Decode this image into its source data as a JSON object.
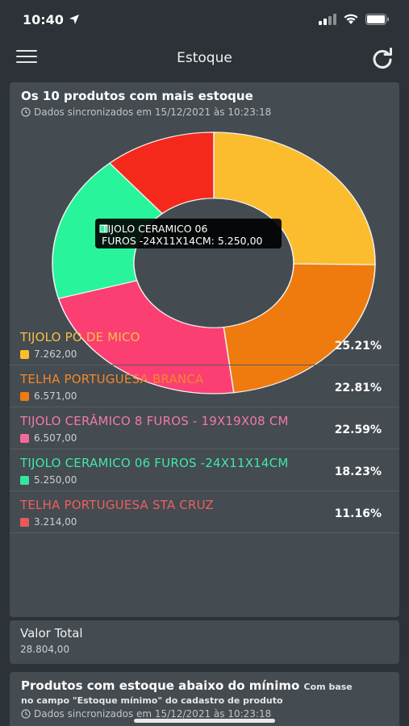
{
  "status": {
    "time": "10:40"
  },
  "header": {
    "title": "Estoque"
  },
  "stock_card": {
    "title": "Os 10 produtos com mais estoque",
    "sync": "Dados sincronizados em 15/12/2021 às 10:23:18"
  },
  "tooltip": {
    "line1": "TIJOLO CERAMICO 06",
    "line2": "FUROS -24X11X14CM: 5.250,00"
  },
  "chart_data": {
    "type": "pie",
    "title": "Os 10 produtos com mais estoque",
    "categories": [
      "TIJOLO PO DE MICO",
      "TELHA PORTUGUESA BRANCA",
      "TIJOLO CERÂMICO 8 FUROS - 19X19X08 CM",
      "TIJOLO CERAMICO 06 FUROS -24X11X14CM",
      "TELHA PORTUGUESA STA CRUZ"
    ],
    "values": [
      7262,
      6571,
      6507,
      5250,
      3214
    ],
    "colors": [
      "#fbbd2e",
      "#ef7b0f",
      "#fb3f72",
      "#28f49b",
      "#f5281c"
    ],
    "donut": true
  },
  "legend": [
    {
      "name": "TIJOLO PO DE MICO",
      "value": "7.262,00",
      "pct": "25.21%",
      "color": "#fbbd2e",
      "text_color": "#f5c048"
    },
    {
      "name": "TELHA PORTUGUESA BRANCA",
      "value": "6.571,00",
      "pct": "22.81%",
      "color": "#ef7b0f",
      "text_color": "#f3882a"
    },
    {
      "name": "TIJOLO CERÂMICO 8 FUROS - 19X19X08 CM",
      "value": "6.507,00",
      "pct": "22.59%",
      "color": "#f06b9b",
      "text_color": "#f07aa6"
    },
    {
      "name": "TIJOLO CERAMICO 06 FUROS -24X11X14CM",
      "value": "5.250,00",
      "pct": "18.23%",
      "color": "#33e6a0",
      "text_color": "#3fe8a8"
    },
    {
      "name": "TELHA PORTUGUESA STA CRUZ",
      "value": "3.214,00",
      "pct": "11.16%",
      "color": "#e85a5a",
      "text_color": "#ee5f5f"
    }
  ],
  "total": {
    "label": "Valor Total",
    "value": "28.804,00"
  },
  "low_stock_card": {
    "title": "Produtos com estoque abaixo do mínimo",
    "note_a": "Com base",
    "note_b": "no campo \"Estoque mínimo\" do cadastro de produto",
    "sync": "Dados sincronizados em 15/12/2021 às 10:23:18"
  },
  "icons": {
    "menu": "hamburger-menu-icon",
    "refresh": "refresh-icon",
    "clock": "clock-icon",
    "location": "location-arrow-icon",
    "signal": "signal-icon",
    "wifi": "wifi-icon",
    "battery": "battery-icon"
  }
}
